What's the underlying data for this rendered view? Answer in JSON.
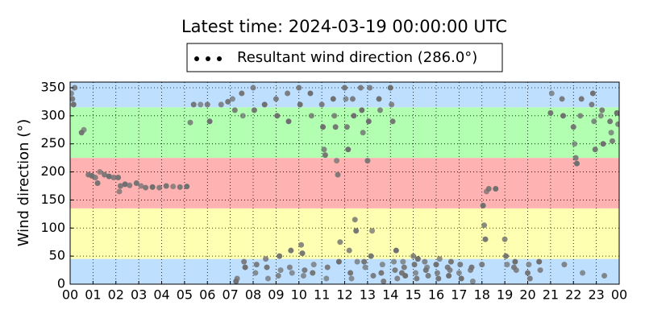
{
  "chart_data": {
    "type": "scatter",
    "title": "Latest time: 2024-03-19 00:00:00 UTC",
    "y_label": "Wind direction (°)",
    "legend_label": "Resultant wind direction (286.0°)",
    "legend_position": "top",
    "grid": true,
    "xlim": [
      0,
      24
    ],
    "ylim": [
      0,
      360
    ],
    "yticks": [
      0,
      50,
      100,
      150,
      200,
      250,
      300,
      350
    ],
    "xticks": [
      {
        "value": 0,
        "label": "00"
      },
      {
        "value": 1,
        "label": "01"
      },
      {
        "value": 2,
        "label": "02"
      },
      {
        "value": 3,
        "label": "03"
      },
      {
        "value": 4,
        "label": "04"
      },
      {
        "value": 5,
        "label": "05"
      },
      {
        "value": 6,
        "label": "06"
      },
      {
        "value": 7,
        "label": "07"
      },
      {
        "value": 8,
        "label": "08"
      },
      {
        "value": 9,
        "label": "09"
      },
      {
        "value": 10,
        "label": "10"
      },
      {
        "value": 11,
        "label": "11"
      },
      {
        "value": 12,
        "label": "12"
      },
      {
        "value": 13,
        "label": "13"
      },
      {
        "value": 14,
        "label": "14"
      },
      {
        "value": 15,
        "label": "15"
      },
      {
        "value": 16,
        "label": "16"
      },
      {
        "value": 17,
        "label": "17"
      },
      {
        "value": 18,
        "label": "18"
      },
      {
        "value": 19,
        "label": "19"
      },
      {
        "value": 20,
        "label": "20"
      },
      {
        "value": 21,
        "label": "21"
      },
      {
        "value": 22,
        "label": "22"
      },
      {
        "value": 23,
        "label": "23"
      },
      {
        "value": 24,
        "label": "00"
      }
    ],
    "bands": [
      {
        "from": 0,
        "to": 45,
        "color": "#bfdfff"
      },
      {
        "from": 45,
        "to": 135,
        "color": "#ffffb2"
      },
      {
        "from": 135,
        "to": 225,
        "color": "#ffb2b2"
      },
      {
        "from": 225,
        "to": 315,
        "color": "#b2ffb2"
      },
      {
        "from": 315,
        "to": 360,
        "color": "#bfdfff"
      }
    ],
    "series": [
      {
        "name": "Resultant wind direction",
        "color": "#707070",
        "x": [
          0.05,
          0.1,
          0.15,
          0.2,
          0.5,
          0.6,
          0.8,
          0.95,
          1.1,
          1.2,
          1.3,
          1.5,
          1.7,
          1.9,
          2.1,
          2.15,
          2.2,
          2.4,
          2.6,
          2.9,
          3.1,
          3.3,
          3.6,
          3.9,
          4.2,
          4.5,
          4.8,
          5.1,
          5.25,
          5.4,
          5.7,
          6.0,
          6.1,
          6.6,
          6.9,
          7.1,
          7.2,
          7.25,
          7.3,
          7.5,
          7.55,
          7.6,
          7.65,
          8.0,
          8.05,
          8.1,
          8.15,
          8.5,
          8.55,
          8.6,
          8.65,
          9.0,
          9.05,
          9.1,
          9.15,
          9.2,
          9.5,
          9.55,
          9.6,
          9.65,
          9.7,
          10.0,
          10.05,
          10.1,
          10.15,
          10.2,
          10.25,
          10.5,
          10.55,
          10.6,
          10.65,
          11.0,
          11.05,
          11.1,
          11.15,
          11.2,
          11.25,
          11.5,
          11.55,
          11.6,
          11.65,
          11.7,
          11.75,
          11.8,
          12.0,
          12.05,
          12.1,
          12.15,
          12.2,
          12.25,
          12.3,
          12.35,
          12.4,
          12.45,
          12.5,
          12.55,
          12.7,
          12.75,
          12.8,
          12.85,
          12.9,
          13.0,
          13.05,
          13.1,
          13.15,
          13.2,
          13.25,
          13.5,
          13.55,
          13.6,
          13.65,
          13.7,
          14.0,
          14.05,
          14.1,
          14.15,
          14.2,
          14.25,
          14.3,
          14.5,
          14.55,
          14.6,
          14.65,
          15.0,
          15.05,
          15.1,
          15.15,
          15.2,
          15.5,
          15.55,
          15.6,
          15.65,
          16.0,
          16.05,
          16.1,
          16.15,
          16.5,
          16.55,
          16.6,
          16.65,
          17.0,
          17.05,
          17.1,
          17.5,
          17.55,
          17.6,
          18.0,
          18.05,
          18.1,
          18.15,
          18.2,
          18.3,
          18.6,
          19.0,
          19.05,
          19.1,
          19.4,
          19.45,
          19.5,
          20.0,
          20.05,
          20.1,
          20.5,
          20.55,
          21.0,
          21.05,
          21.5,
          21.55,
          21.6,
          22.0,
          22.05,
          22.1,
          22.15,
          22.3,
          22.35,
          22.4,
          22.8,
          22.85,
          22.9,
          22.95,
          23.2,
          23.25,
          23.3,
          23.35,
          23.6,
          23.65,
          23.7,
          23.9,
          23.95
        ],
        "values": [
          340,
          330,
          320,
          350,
          270,
          275,
          195,
          193,
          190,
          180,
          200,
          195,
          192,
          190,
          190,
          165,
          175,
          178,
          176,
          180,
          175,
          172,
          173,
          172,
          175,
          174,
          173,
          174,
          288,
          320,
          320,
          320,
          290,
          320,
          325,
          330,
          310,
          5,
          10,
          340,
          300,
          40,
          30,
          350,
          310,
          20,
          35,
          320,
          45,
          30,
          10,
          330,
          300,
          15,
          50,
          25,
          340,
          290,
          30,
          60,
          20,
          350,
          320,
          70,
          55,
          15,
          25,
          340,
          300,
          20,
          35,
          320,
          280,
          240,
          230,
          10,
          30,
          330,
          300,
          280,
          220,
          195,
          40,
          75,
          350,
          330,
          280,
          240,
          60,
          20,
          10,
          330,
          300,
          115,
          95,
          40,
          350,
          310,
          270,
          40,
          30,
          220,
          290,
          350,
          50,
          95,
          15,
          330,
          310,
          20,
          35,
          5,
          350,
          320,
          290,
          40,
          25,
          60,
          10,
          20,
          40,
          30,
          15,
          50,
          35,
          20,
          10,
          45,
          40,
          25,
          30,
          15,
          35,
          20,
          10,
          45,
          30,
          15,
          25,
          40,
          20,
          35,
          10,
          25,
          30,
          5,
          35,
          140,
          105,
          80,
          165,
          170,
          170,
          80,
          50,
          35,
          30,
          40,
          25,
          20,
          35,
          10,
          40,
          25,
          305,
          340,
          330,
          300,
          35,
          280,
          250,
          225,
          215,
          300,
          330,
          20,
          320,
          340,
          290,
          240,
          300,
          310,
          250,
          15,
          290,
          270,
          255,
          305,
          285
        ]
      }
    ]
  }
}
